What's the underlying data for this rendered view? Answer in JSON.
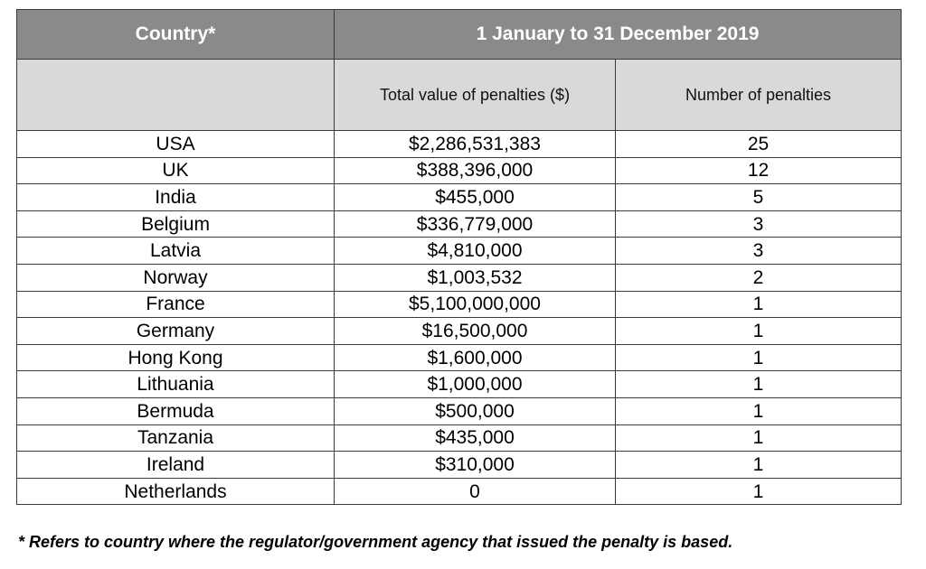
{
  "table": {
    "header": {
      "country": "Country*",
      "period": "1 January to 31 December 2019"
    },
    "subheader": {
      "country": "",
      "total_value": "Total value of penalties ($)",
      "count": "Number of penalties"
    },
    "rows": [
      {
        "country": "USA",
        "total_value": "$2,286,531,383",
        "count": "25"
      },
      {
        "country": "UK",
        "total_value": "$388,396,000",
        "count": "12"
      },
      {
        "country": "India",
        "total_value": "$455,000",
        "count": "5"
      },
      {
        "country": "Belgium",
        "total_value": "$336,779,000",
        "count": "3"
      },
      {
        "country": "Latvia",
        "total_value": "$4,810,000",
        "count": "3"
      },
      {
        "country": "Norway",
        "total_value": "$1,003,532",
        "count": "2"
      },
      {
        "country": "France",
        "total_value": "$5,100,000,000",
        "count": "1"
      },
      {
        "country": "Germany",
        "total_value": "$16,500,000",
        "count": "1"
      },
      {
        "country": "Hong Kong",
        "total_value": "$1,600,000",
        "count": "1"
      },
      {
        "country": "Lithuania",
        "total_value": "$1,000,000",
        "count": "1"
      },
      {
        "country": "Bermuda",
        "total_value": "$500,000",
        "count": "1"
      },
      {
        "country": "Tanzania",
        "total_value": "$435,000",
        "count": "1"
      },
      {
        "country": "Ireland",
        "total_value": "$310,000",
        "count": "1"
      },
      {
        "country": "Netherlands",
        "total_value": "0",
        "count": "1"
      }
    ]
  },
  "footnote": "* Refers to country where the regulator/government agency that issued the penalty is based.",
  "colors": {
    "header_bg": "#8a8a8a",
    "subheader_bg": "#d9d9d9",
    "border": "#3a3a3a"
  }
}
